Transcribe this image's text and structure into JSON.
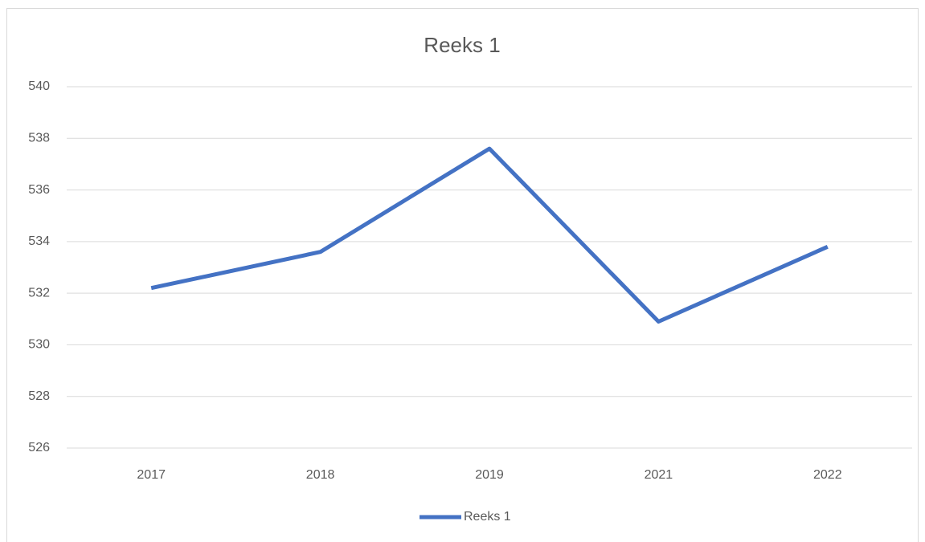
{
  "chart_data": {
    "type": "line",
    "title": "Reeks 1",
    "categories": [
      "2017",
      "2018",
      "2019",
      "2021",
      "2022"
    ],
    "series": [
      {
        "name": "Reeks 1",
        "color": "#4472c4",
        "values": [
          532.2,
          533.6,
          537.6,
          530.9,
          533.8
        ]
      }
    ],
    "ylim": [
      526,
      540
    ],
    "yticks": [
      526,
      528,
      530,
      532,
      534,
      536,
      538,
      540
    ],
    "grid": true,
    "legend": "bottom"
  }
}
